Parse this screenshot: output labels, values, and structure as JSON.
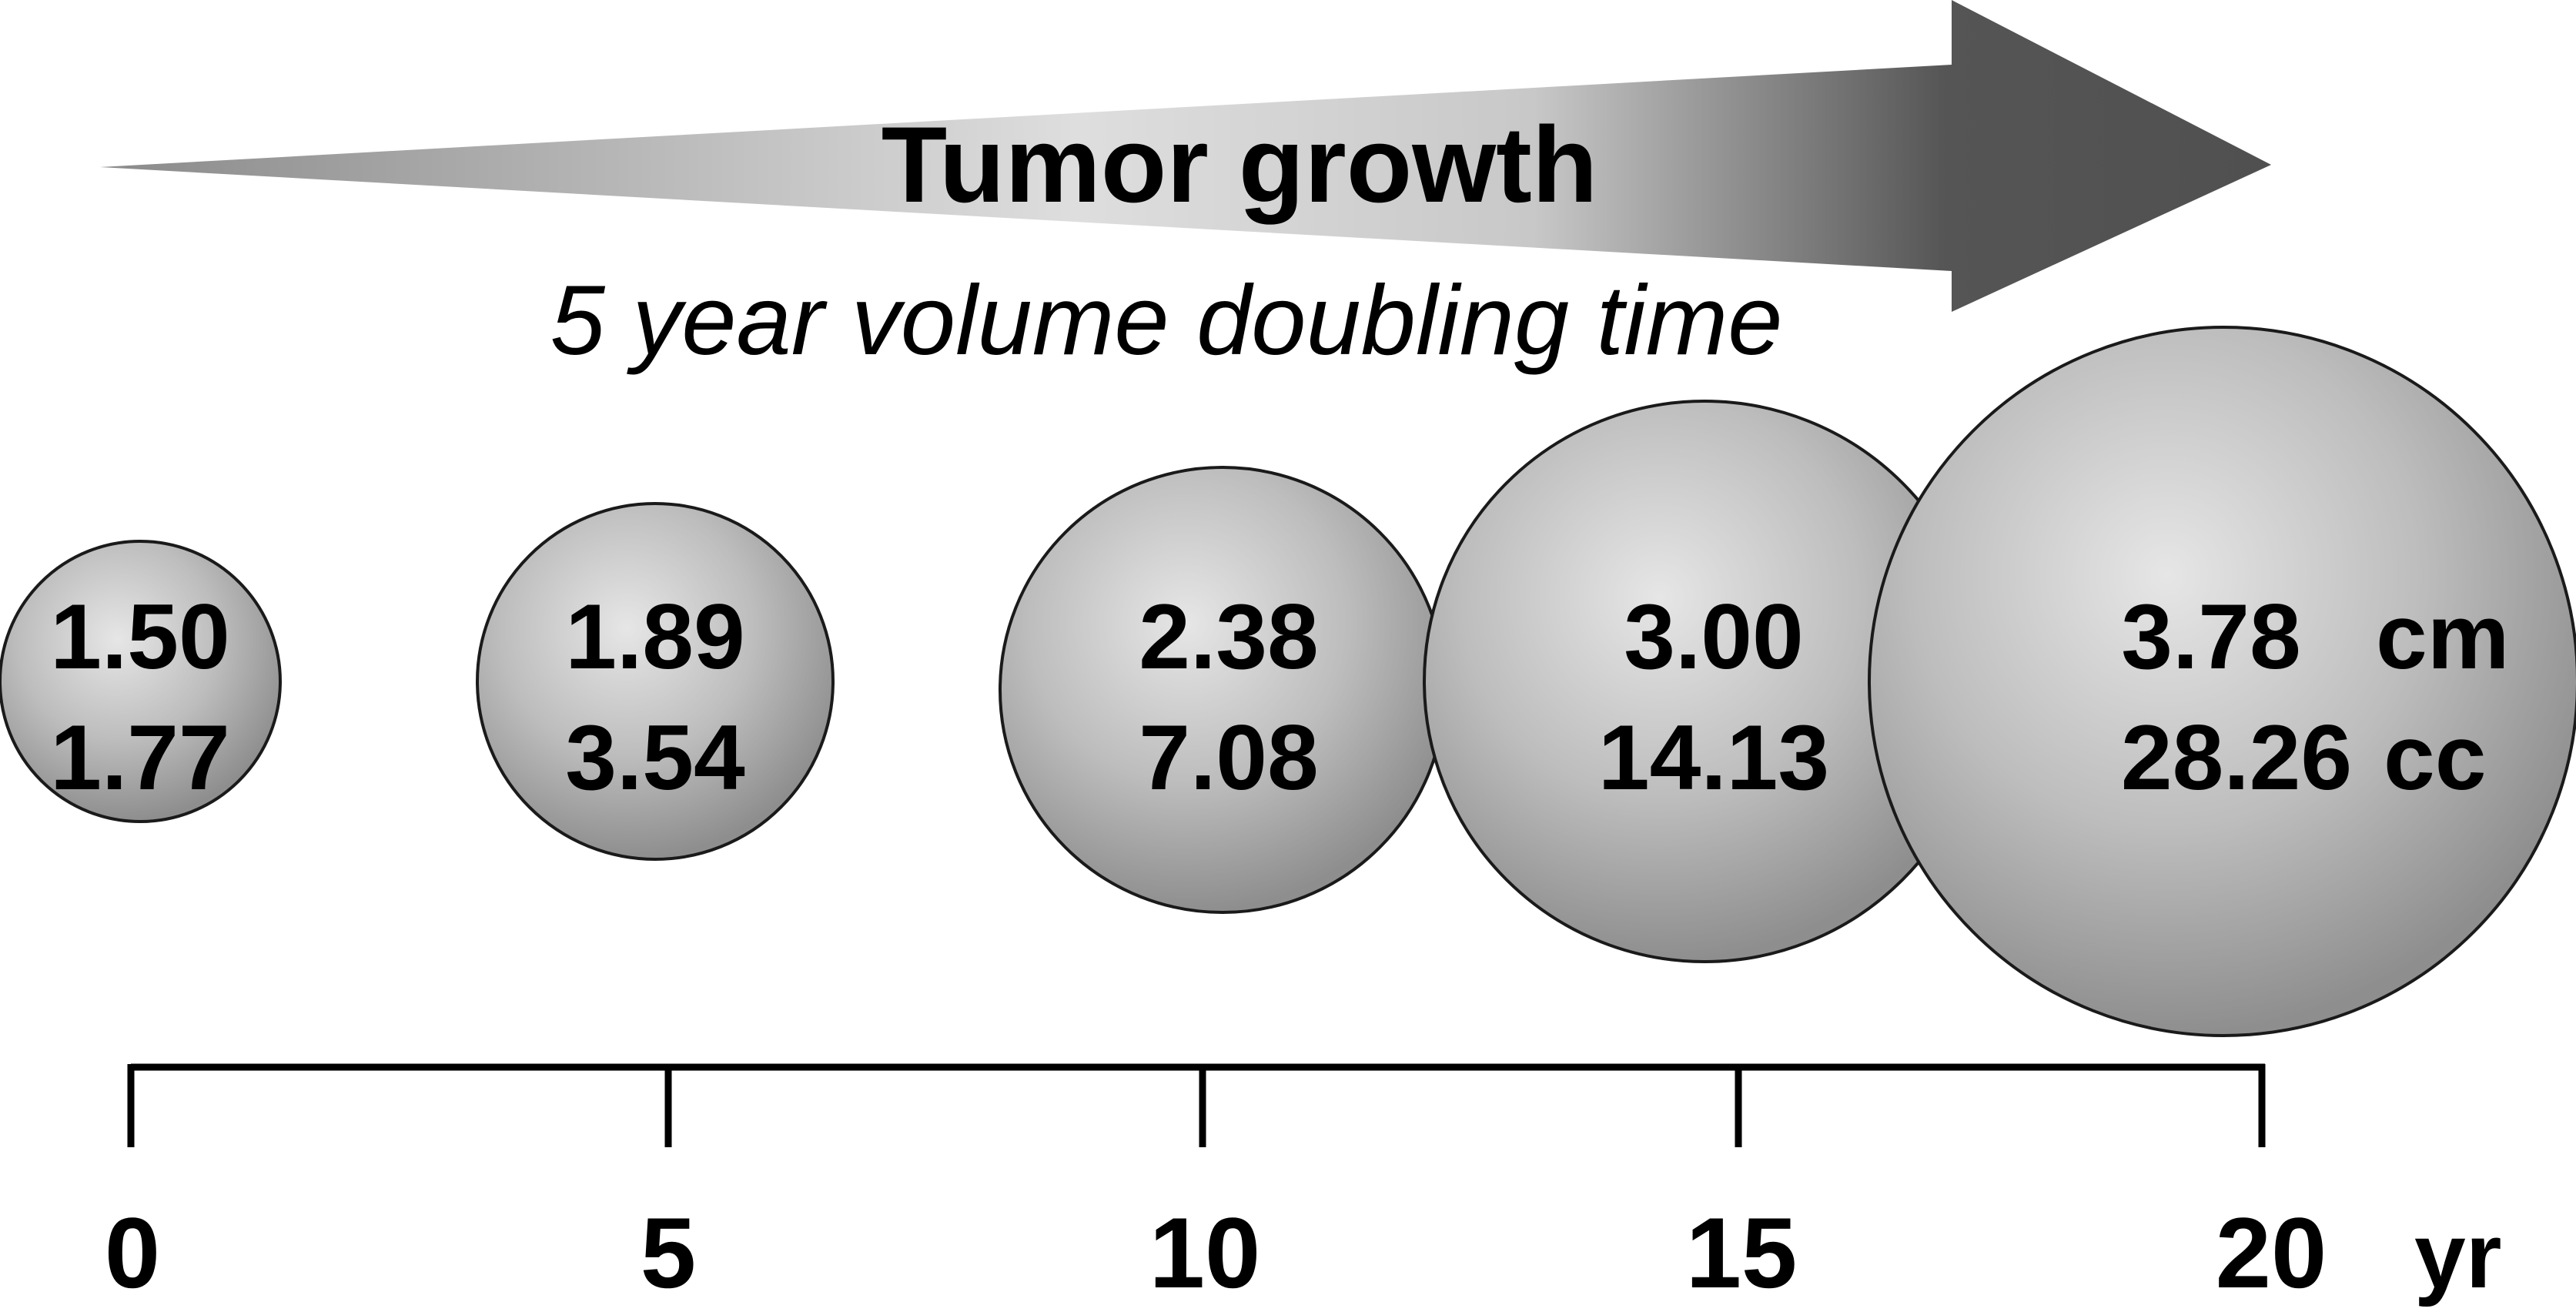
{
  "title": "Tumor growth",
  "subtitle": "5 year volume doubling time",
  "units": {
    "diameter": "cm",
    "volume": "cc",
    "time": "yr"
  },
  "chart_data": {
    "type": "diagram",
    "years": [
      0,
      5,
      10,
      15,
      20
    ],
    "tumors": [
      {
        "year": 0,
        "diameter_label": "1.50",
        "volume_label": "1.77"
      },
      {
        "year": 5,
        "diameter_label": "1.89",
        "volume_label": "3.54"
      },
      {
        "year": 10,
        "diameter_label": "2.38",
        "volume_label": "7.08"
      },
      {
        "year": 15,
        "diameter_label": "3.00",
        "volume_label": "14.13"
      },
      {
        "year": 20,
        "diameter_label": "3.78",
        "volume_label": "28.26"
      }
    ],
    "axis_ticks": [
      "0",
      "5",
      "10",
      "15",
      "20"
    ]
  }
}
